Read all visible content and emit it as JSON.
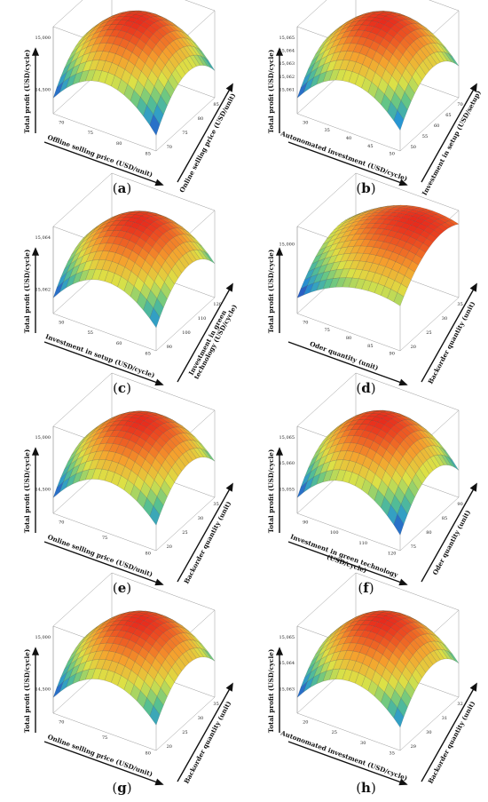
{
  "colors": {
    "surface_low": "#2b33b8",
    "surface_mid": "#e8e64a",
    "surface_high": "#e82a1c",
    "box": "#9a9a9a",
    "mesh": "#3d3d3d",
    "arrow": "#111111"
  },
  "chart_data": [
    {
      "panel": "a",
      "caption_letter": "a",
      "type": "surface",
      "zlabel": "Total profit (USD/cycle)",
      "xlabel": "Offline selling price (USD/unit)",
      "ylabel": "Online selling price (USD/unit)",
      "z_ticks": [
        "15,000",
        "14,500"
      ],
      "x_ticks": [
        "70",
        "75",
        "80",
        "85"
      ],
      "y_ticks": [
        "70",
        "75",
        "80",
        "85"
      ],
      "zlim": [
        14400,
        15100
      ],
      "peak_z": 15050
    },
    {
      "panel": "b",
      "caption_letter": "b",
      "type": "surface",
      "zlabel": "Total profit (USD/cycle)",
      "xlabel": "Autonomated investment (USD/cycle)",
      "ylabel": "Investment in setup (USD/setup)",
      "z_ticks": [
        "15,065",
        "15,064",
        "15,063",
        "15,062",
        "15,061"
      ],
      "x_ticks": [
        "30",
        "35",
        "40",
        "45",
        "50"
      ],
      "y_ticks": [
        "50",
        "55",
        "60",
        "65",
        "70"
      ],
      "zlim": [
        15060,
        15066
      ],
      "peak_z": 15065.5
    },
    {
      "panel": "c",
      "caption_letter": "c",
      "type": "surface",
      "zlabel": "Total profit (USD/cycle)",
      "xlabel": "Investment in setup (USD/cycle)",
      "ylabel": "Investment in green technology (USD/cycle)",
      "ylabel_lines": [
        "Investment in green",
        "technology (USD/cycle)"
      ],
      "z_ticks": [
        "15,064",
        "15,062"
      ],
      "x_ticks": [
        "50",
        "55",
        "60",
        "65"
      ],
      "y_ticks": [
        "90",
        "100",
        "110",
        "120"
      ],
      "zlim": [
        15060,
        15066
      ],
      "peak_z": 15065
    },
    {
      "panel": "d",
      "caption_letter": "d",
      "type": "surface",
      "zlabel": "Total profit (USD/cycle)",
      "xlabel": "Oder quantity (unit)",
      "ylabel": "Backorder quantity (unit)",
      "z_ticks": [
        "15,000"
      ],
      "x_ticks": [
        "70",
        "75",
        "80",
        "85",
        "90"
      ],
      "y_ticks": [
        "20",
        "25",
        "30",
        "35"
      ],
      "zlim": [
        14900,
        15100
      ],
      "peak_z": 15070
    },
    {
      "panel": "e",
      "caption_letter": "e",
      "type": "surface",
      "zlabel": "Total profit (USD/cycle)",
      "xlabel": "Online selling price (USD/unit)",
      "ylabel": "Backorder quantity (unit)",
      "z_ticks": [
        "15,000",
        "14,500"
      ],
      "x_ticks": [
        "70",
        "75",
        "80"
      ],
      "y_ticks": [
        "20",
        "25",
        "30",
        "35"
      ],
      "zlim": [
        14400,
        15100
      ],
      "peak_z": 15050
    },
    {
      "panel": "f",
      "caption_letter": "f",
      "type": "surface",
      "zlabel": "Total profit (USD/cycle)",
      "xlabel": "Investment in green technology (USD/cycle)",
      "xlabel_lines": [
        "Investment in green technology",
        "(USD/cycle)"
      ],
      "ylabel": "Oder quantity (unit)",
      "z_ticks": [
        "15,065",
        "15,060",
        "15,055"
      ],
      "x_ticks": [
        "90",
        "100",
        "110",
        "120"
      ],
      "y_ticks": [
        "75",
        "80",
        "85",
        "90"
      ],
      "zlim": [
        15050,
        15068
      ],
      "peak_z": 15066
    },
    {
      "panel": "g",
      "caption_letter": "g",
      "type": "surface",
      "zlabel": "Total profit (USD/cycle)",
      "xlabel": "Online selling price (USD/unit)",
      "ylabel": "Backorder quantity (unit)",
      "z_ticks": [
        "15,000",
        "14,500"
      ],
      "x_ticks": [
        "70",
        "75",
        "80"
      ],
      "y_ticks": [
        "20",
        "25",
        "30",
        "35"
      ],
      "zlim": [
        14400,
        15100
      ],
      "peak_z": 15050
    },
    {
      "panel": "h",
      "caption_letter": "h",
      "type": "surface",
      "zlabel": "Total profit (USD/cycle)",
      "xlabel": "Autonomated investment (USD/cycle)",
      "ylabel": "Backorder quantity (unit)",
      "z_ticks": [
        "15,065",
        "15,064",
        "15,063"
      ],
      "x_ticks": [
        "20",
        "25",
        "30",
        "35"
      ],
      "y_ticks": [
        "29",
        "30",
        "31",
        "32"
      ],
      "zlim": [
        15062,
        15066
      ],
      "peak_z": 15065.5
    }
  ]
}
